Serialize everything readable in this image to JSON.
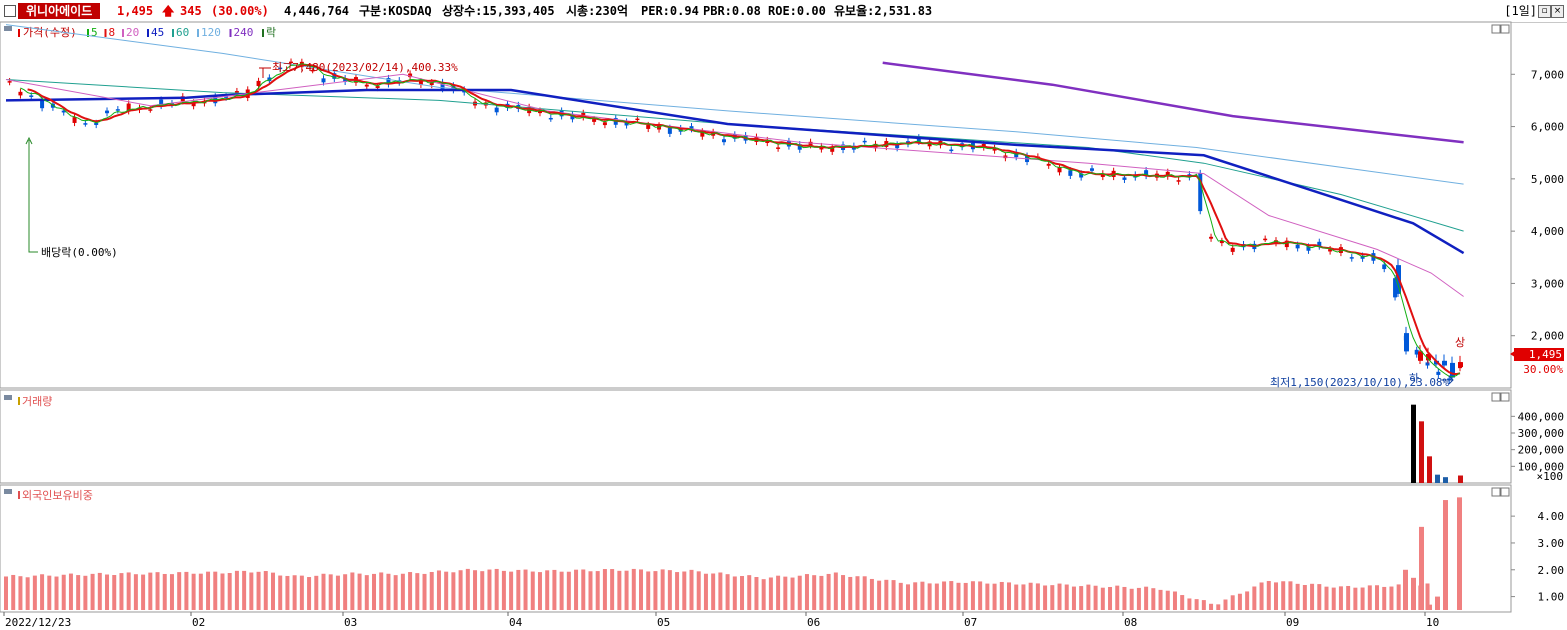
{
  "header": {
    "stock_name": "위니아에이드",
    "price": "1,495",
    "change": "345",
    "change_pct": "(30.00%)",
    "volume": "4,446,764",
    "market": "구분:KOSDAQ",
    "shares": "상장수:15,393,405",
    "market_cap": "시총:230억",
    "per": "PER:0.94",
    "pbr": "PBR:0.08",
    "roe": "ROE:0.00",
    "float": "유보율:2,531.83",
    "period": "[1일]",
    "up_color": "#e00000",
    "down_color": "#0058d8"
  },
  "price_panel": {
    "legend": {
      "price_label": "가격(수정)",
      "ma": [
        {
          "label": "5",
          "color": "#13b013"
        },
        {
          "label": "8",
          "color": "#e01010"
        },
        {
          "label": "20",
          "color": "#d060c0"
        },
        {
          "label": "45",
          "color": "#1020c0"
        },
        {
          "label": "60",
          "color": "#20a090"
        },
        {
          "label": "120",
          "color": "#70b0e0"
        },
        {
          "label": "240",
          "color": "#8030c0"
        }
      ],
      "ex_label": "락"
    },
    "annotations": {
      "high": "최고7,480(2023/02/14),400.33%",
      "low": "최저1,150(2023/10/10),23.08%",
      "dividend": "배당락(0.00%)",
      "mark_up": "상",
      "mark_down": "하"
    },
    "last_price_tag": "1,495",
    "last_pct_tag": "30.00%",
    "y_ticks": [
      "7,000",
      "6,000",
      "5,000",
      "4,000",
      "3,000",
      "2,000"
    ]
  },
  "volume_panel": {
    "title": "거래량",
    "y_ticks": [
      "400,000",
      "300,000",
      "200,000",
      "100,000"
    ],
    "unit": "×100"
  },
  "foreign_panel": {
    "title": "외국인보유비중",
    "y_ticks": [
      "4.00",
      "3.00",
      "2.00",
      "1.00"
    ]
  },
  "x_axis": [
    "2022/12/23",
    "02",
    "03",
    "04",
    "05",
    "06",
    "07",
    "08",
    "09",
    "10"
  ],
  "chart_data": {
    "type": "candlestick",
    "title": "위니아에이드",
    "x": [
      "2022/12/23",
      "02",
      "03",
      "04",
      "05",
      "06",
      "07",
      "08",
      "09",
      "10"
    ],
    "price_ylim": [
      1000,
      8000
    ],
    "price_close_approx": [
      6700,
      6550,
      6300,
      6400,
      6500,
      6650,
      7250,
      7000,
      6900,
      6500,
      6300,
      6100,
      5800,
      5700,
      5550,
      5600,
      5650,
      5500,
      5100,
      5050,
      3750,
      3650,
      3500,
      1150,
      1495
    ],
    "high": {
      "value": 7480,
      "date": "2023/02/14",
      "pct": 400.33
    },
    "low": {
      "value": 1150,
      "date": "2023/10/10",
      "pct": 23.08
    },
    "ma_240_end": 5700,
    "ma_120_end": 4900,
    "ma_60_end": 4000,
    "ma_45_end": 3580,
    "ma_20_end": 2750,
    "volume_ylim": [
      0,
      480000
    ],
    "volume_recent": [
      470000,
      370000,
      160000,
      50000,
      35000,
      45000
    ],
    "foreign_ratio_ylim": [
      0.5,
      4.9
    ],
    "foreign_ratio_recent": [
      2.0,
      1.7,
      3.6,
      0.7,
      1.0,
      4.6,
      4.7
    ]
  }
}
